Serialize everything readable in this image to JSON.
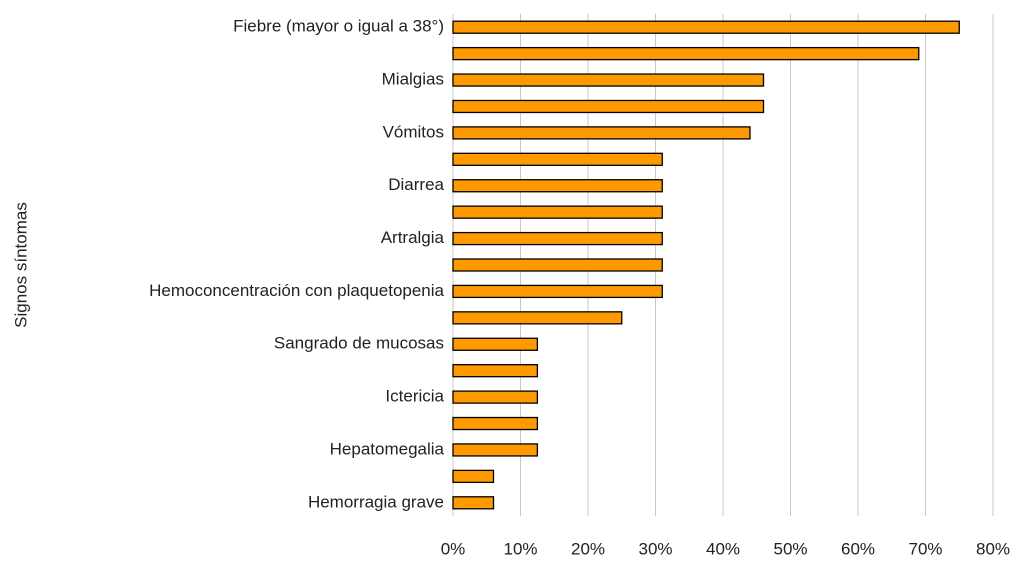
{
  "chart_data": {
    "type": "bar",
    "orientation": "horizontal",
    "y_label": "Signos  síntomas",
    "categories": [
      "Fiebre (mayor o igual a 38°)",
      null,
      "Mialgias",
      null,
      "Vómitos",
      null,
      "Diarrea",
      null,
      "Artralgia",
      null,
      "Hemoconcentración con plaquetopenia",
      null,
      "Sangrado de mucosas",
      null,
      "Ictericia",
      null,
      "Hepatomegalia",
      null,
      "Hemorragia grave"
    ],
    "values": [
      75,
      69,
      46,
      46,
      44,
      31,
      31,
      31,
      31,
      31,
      31,
      25,
      12.5,
      12.5,
      12.5,
      12.5,
      12.5,
      6,
      6
    ],
    "color": "#ff9900",
    "xlim": [
      0,
      80
    ],
    "xticks": [
      {
        "value": 0,
        "label": "0%"
      },
      {
        "value": 10,
        "label": "10%"
      },
      {
        "value": 20,
        "label": "20%"
      },
      {
        "value": 30,
        "label": "30%"
      },
      {
        "value": 40,
        "label": "40%"
      },
      {
        "value": 50,
        "label": "50%"
      },
      {
        "value": 60,
        "label": "60%"
      },
      {
        "value": 70,
        "label": "70%"
      },
      {
        "value": 80,
        "label": "80%"
      }
    ],
    "grid": true
  }
}
